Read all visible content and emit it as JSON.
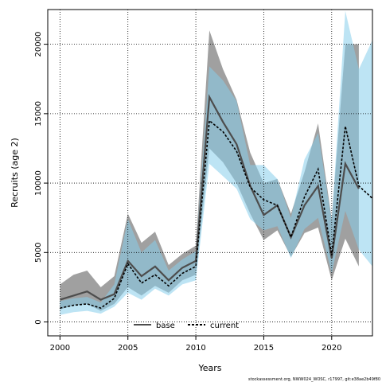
{
  "chart_data": {
    "type": "line",
    "xlabel": "Years",
    "ylabel": "Recruits (age 2)",
    "xlim": [
      1999.1,
      2023.0
    ],
    "ylim": [
      -1000,
      22500
    ],
    "x_ticks": [
      2000,
      2005,
      2010,
      2015,
      2020
    ],
    "y_ticks": [
      0,
      5000,
      10000,
      15000,
      20000
    ],
    "grid": "dotted",
    "legend_position": "bottom-center",
    "years": [
      2000,
      2001,
      2002,
      2003,
      2004,
      2005,
      2006,
      2007,
      2008,
      2009,
      2010,
      2011,
      2012,
      2013,
      2014,
      2015,
      2016,
      2017,
      2018,
      2019,
      2020,
      2021,
      2022,
      2023
    ],
    "series": [
      {
        "name": "base",
        "color": "#4d4d4d",
        "band_color": "#808080",
        "line_style": "solid",
        "years": [
          2000,
          2001,
          2002,
          2003,
          2004,
          2005,
          2006,
          2007,
          2008,
          2009,
          2010,
          2011,
          2012,
          2013,
          2014,
          2015,
          2016,
          2017,
          2018,
          2019,
          2020,
          2021,
          2022
        ],
        "values": [
          1600,
          1900,
          2200,
          1600,
          2000,
          4400,
          3300,
          4000,
          3000,
          3900,
          4400,
          16200,
          14400,
          12800,
          9800,
          7700,
          8400,
          6100,
          8400,
          9800,
          4600,
          11400,
          9600
        ],
        "lower": [
          900,
          1200,
          1300,
          800,
          1300,
          2500,
          1900,
          2600,
          2100,
          3000,
          3400,
          12500,
          11500,
          10000,
          7800,
          5900,
          6600,
          4700,
          6400,
          6800,
          3000,
          6000,
          4000
        ],
        "upper": [
          2700,
          3400,
          3700,
          2500,
          3300,
          7800,
          5700,
          6500,
          4100,
          4900,
          5500,
          21000,
          18200,
          16000,
          12200,
          10000,
          10300,
          7800,
          10800,
          14300,
          7400,
          20000,
          20000
        ]
      },
      {
        "name": "current",
        "color": "#000000",
        "band_color": "#87ceeb",
        "line_style": "dashed",
        "years": [
          2000,
          2001,
          2002,
          2003,
          2004,
          2005,
          2006,
          2007,
          2008,
          2009,
          2010,
          2011,
          2012,
          2013,
          2014,
          2015,
          2016,
          2017,
          2018,
          2019,
          2020,
          2021,
          2022,
          2023
        ],
        "values": [
          1000,
          1200,
          1300,
          1000,
          1700,
          4200,
          2800,
          3400,
          2600,
          3500,
          4000,
          14500,
          13700,
          12300,
          9700,
          8800,
          8400,
          6100,
          9000,
          11000,
          4800,
          14100,
          9800,
          8900
        ],
        "lower": [
          500,
          700,
          800,
          600,
          1100,
          2100,
          1600,
          2400,
          1900,
          2700,
          3000,
          11400,
          10500,
          9600,
          7400,
          6600,
          6900,
          4600,
          6700,
          7500,
          3500,
          8000,
          5200,
          4000
        ],
        "upper": [
          1500,
          1700,
          1800,
          1400,
          2700,
          7400,
          5000,
          5900,
          3700,
          4500,
          5100,
          18400,
          17400,
          15900,
          11300,
          11300,
          10300,
          7500,
          11700,
          13600,
          7300,
          22400,
          18200,
          20300
        ]
      }
    ]
  },
  "footer": "stockassessment.org, NWW024_WOSC, r17997, git:e38ae2b49f80"
}
